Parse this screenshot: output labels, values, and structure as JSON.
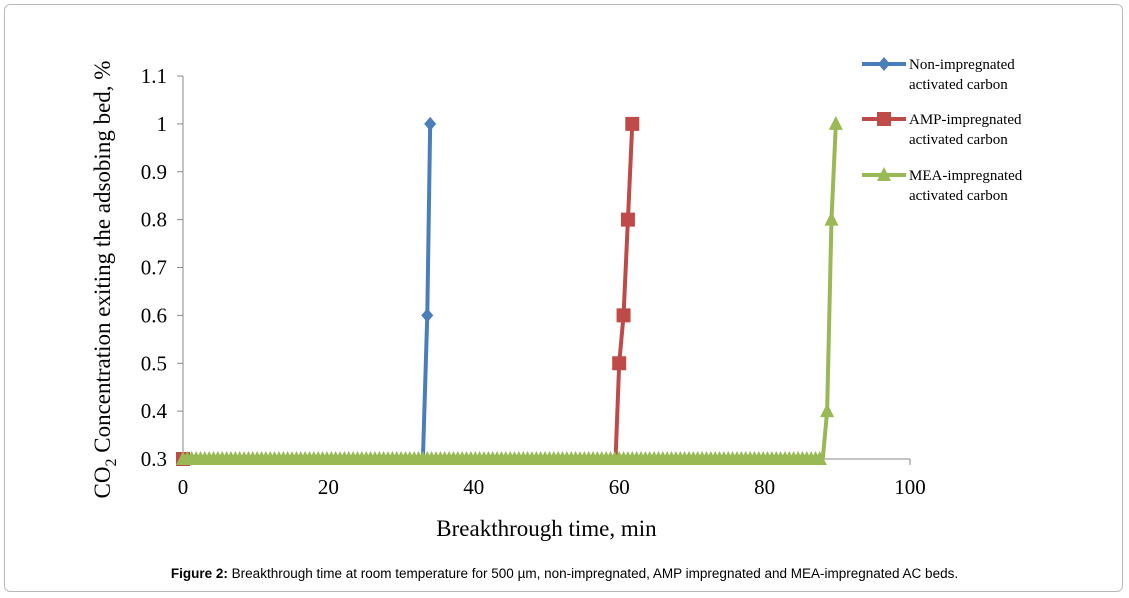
{
  "caption": {
    "label": "Figure 2:",
    "text": "Breakthrough time at room temperature for 500 µm, non-impregnated, AMP impregnated and MEA-impregnated AC beds."
  },
  "chart_data": {
    "type": "line",
    "xlabel": "Breakthrough time, min",
    "ylabel_prefix": "CO",
    "ylabel_subscript": "2",
    "ylabel_suffix": " Concentration exiting the adsobing bed, %",
    "xlim": [
      0,
      100
    ],
    "ylim": [
      0.3,
      1.1
    ],
    "x_ticks": [
      0,
      20,
      40,
      60,
      80,
      100
    ],
    "y_ticks": [
      0.3,
      0.4,
      0.5,
      0.6,
      0.7,
      0.8,
      0.9,
      1,
      1.1
    ],
    "y_tick_labels": [
      "0.3",
      "0.4",
      "0.5",
      "0.6",
      "0.7",
      "0.8",
      "0.9",
      "1",
      "1.1"
    ],
    "legend_position": "top-right",
    "series": [
      {
        "name_line1": "Non-impregnated",
        "name_line2": "activated carbon",
        "color": "#4a7ebb",
        "marker": "diamond",
        "baseline": {
          "x_start": 0,
          "x_end": 33,
          "y": 0.3
        },
        "points": [
          [
            33,
            0.3
          ],
          [
            33.6,
            0.6
          ],
          [
            34,
            1.0
          ]
        ],
        "marker_points": [
          [
            33.6,
            0.6
          ],
          [
            34,
            1.0
          ]
        ]
      },
      {
        "name_line1": "AMP-impregnated",
        "name_line2": "activated carbon",
        "color": "#be4b48",
        "marker": "square",
        "baseline": {
          "x_start": 0,
          "x_end": 59.5,
          "y": 0.3
        },
        "points": [
          [
            59.5,
            0.3
          ],
          [
            60,
            0.5
          ],
          [
            60.6,
            0.6
          ],
          [
            61.2,
            0.8
          ],
          [
            61.8,
            1.0
          ]
        ],
        "marker_points": [
          [
            0,
            0.3
          ],
          [
            60,
            0.5
          ],
          [
            60.6,
            0.6
          ],
          [
            61.2,
            0.8
          ],
          [
            61.8,
            1.0
          ]
        ]
      },
      {
        "name_line1": "MEA-impregnated",
        "name_line2": "activated carbon",
        "color": "#98b954",
        "marker": "triangle",
        "baseline": {
          "x_start": 0,
          "x_end": 88,
          "y": 0.3
        },
        "points": [
          [
            88,
            0.3
          ],
          [
            88.6,
            0.4
          ],
          [
            89.2,
            0.8
          ],
          [
            89.8,
            1.0
          ]
        ],
        "marker_points": [
          [
            88.6,
            0.4
          ],
          [
            89.2,
            0.8
          ],
          [
            89.8,
            1.0
          ]
        ],
        "dense_marker_step": 0.6
      }
    ]
  }
}
